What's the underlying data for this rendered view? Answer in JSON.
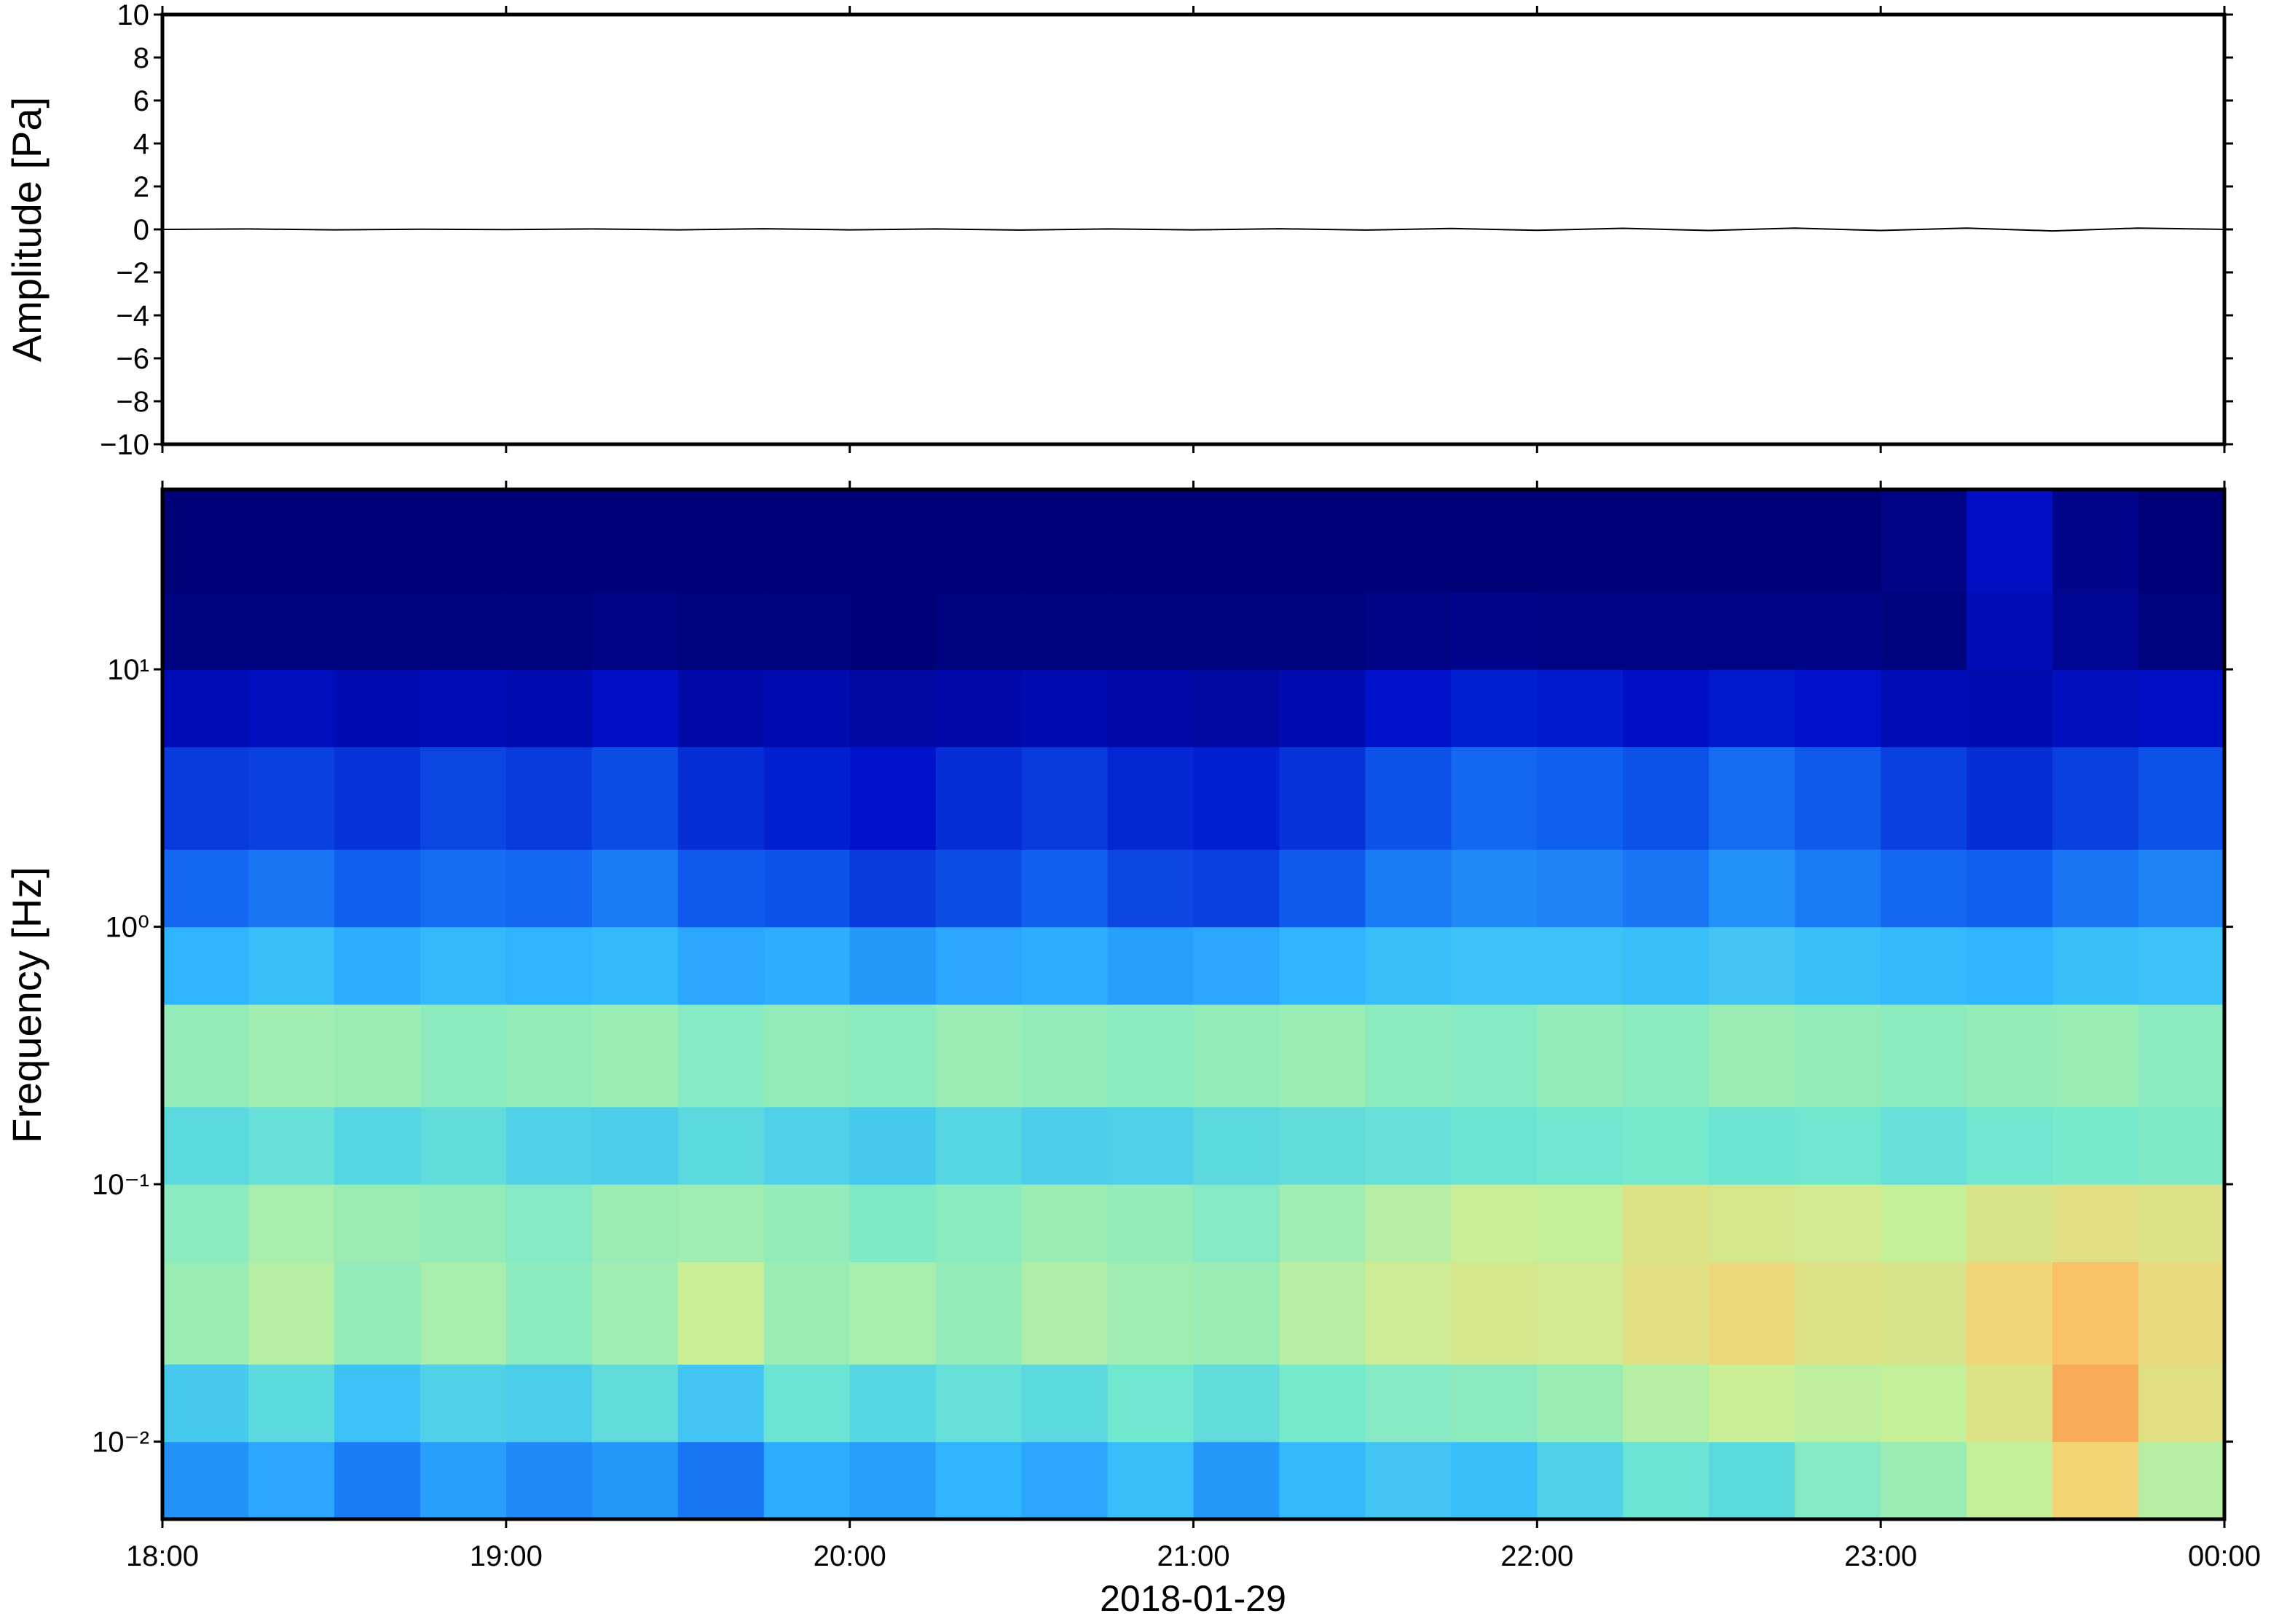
{
  "chart_data": [
    {
      "type": "line",
      "ylabel": "Amplitude [Pa]",
      "color": "#000000",
      "xlim": [
        18,
        24
      ],
      "x": [
        18,
        18.25,
        18.5,
        18.75,
        19,
        19.25,
        19.5,
        19.75,
        20,
        20.25,
        20.5,
        20.75,
        21,
        21.25,
        21.5,
        21.75,
        22,
        22.25,
        22.5,
        22.75,
        23,
        23.25,
        23.5,
        23.75,
        24
      ],
      "values": [
        0,
        0.02,
        -0.02,
        0.01,
        -0.01,
        0.02,
        -0.02,
        0.03,
        -0.02,
        0.02,
        -0.03,
        0.02,
        -0.02,
        0.03,
        -0.03,
        0.04,
        -0.04,
        0.05,
        -0.05,
        0.06,
        -0.05,
        0.06,
        -0.07,
        0.06,
        0
      ],
      "ylim": [
        -10,
        10
      ],
      "yticks": [
        {
          "value": -10,
          "label": "−10"
        },
        {
          "value": -8,
          "label": "−8"
        },
        {
          "value": -6,
          "label": "−6"
        },
        {
          "value": -4,
          "label": "−4"
        },
        {
          "value": -2,
          "label": "−2"
        },
        0,
        2,
        4,
        6,
        8,
        10
      ]
    },
    {
      "type": "heatmap",
      "ylabel": "Frequency [Hz]",
      "xlabel": "2018-01-29",
      "xlim": [
        18,
        24
      ],
      "xticks": [
        {
          "value": 18,
          "label": "18:00"
        },
        {
          "value": 19,
          "label": "19:00"
        },
        {
          "value": 20,
          "label": "20:00"
        },
        {
          "value": 21,
          "label": "21:00"
        },
        {
          "value": 22,
          "label": "22:00"
        },
        {
          "value": 23,
          "label": "23:00"
        },
        {
          "value": 24,
          "label": "00:00"
        }
      ],
      "ylim": [
        0.005,
        50
      ],
      "log_y": true,
      "yticks": [
        {
          "value": 0.01,
          "label": "10⁻²"
        },
        {
          "value": 0.1,
          "label": "10⁻¹"
        },
        {
          "value": 1,
          "label": "10⁰"
        },
        {
          "value": 10,
          "label": "10¹"
        }
      ],
      "time_bins": [
        18,
        18.25,
        18.5,
        18.75,
        19,
        19.25,
        19.5,
        19.75,
        20,
        20.25,
        20.5,
        20.75,
        21,
        21.25,
        21.5,
        21.75,
        22,
        22.25,
        22.5,
        22.75,
        23,
        23.25,
        23.5,
        23.75,
        24
      ],
      "freq_bins": [
        0.005,
        0.01,
        0.02,
        0.05,
        0.1,
        0.2,
        0.5,
        1,
        2,
        5,
        10,
        20,
        50
      ],
      "zlim": [
        0,
        10
      ],
      "colormap": [
        "#000070",
        "#0010c8",
        "#1060f0",
        "#30b8ff",
        "#70e8d0",
        "#c8f098",
        "#f8d070",
        "#f89048",
        "#e83a20"
      ],
      "z": [
        [
          3.2,
          3.5,
          2.9,
          3.4,
          3.1,
          3.3,
          2.8,
          3.6,
          3.4,
          3.7,
          3.5,
          3.9,
          3.3,
          3.8,
          4.1,
          3.9,
          4.4,
          4.9,
          4.6,
          5.3,
          5.6,
          6.2,
          7.4,
          6.0
        ],
        [
          4.2,
          4.6,
          4.0,
          4.4,
          4.3,
          4.7,
          4.1,
          4.9,
          4.5,
          4.8,
          4.6,
          5.0,
          4.7,
          5.1,
          5.3,
          5.4,
          5.6,
          6.0,
          6.3,
          6.1,
          6.2,
          6.8,
          8.2,
          6.9
        ],
        [
          5.6,
          6.0,
          5.5,
          5.8,
          5.4,
          5.7,
          6.3,
          5.6,
          5.8,
          5.5,
          5.9,
          5.7,
          5.6,
          6.0,
          6.4,
          6.6,
          6.5,
          6.9,
          7.2,
          6.8,
          6.7,
          7.3,
          7.8,
          7.1
        ],
        [
          5.4,
          5.8,
          5.6,
          5.5,
          5.3,
          5.6,
          5.7,
          5.5,
          5.2,
          5.4,
          5.6,
          5.5,
          5.3,
          5.7,
          6.0,
          6.3,
          6.2,
          6.8,
          6.6,
          6.5,
          6.2,
          6.7,
          6.9,
          6.8
        ],
        [
          4.6,
          4.8,
          4.5,
          4.7,
          4.4,
          4.3,
          4.6,
          4.4,
          4.2,
          4.5,
          4.3,
          4.4,
          4.6,
          4.7,
          4.8,
          4.9,
          5.0,
          5.1,
          4.9,
          5.0,
          4.8,
          5.0,
          5.1,
          5.2
        ],
        [
          5.5,
          5.7,
          5.6,
          5.4,
          5.5,
          5.6,
          5.3,
          5.5,
          5.4,
          5.6,
          5.5,
          5.4,
          5.5,
          5.6,
          5.4,
          5.3,
          5.5,
          5.4,
          5.6,
          5.5,
          5.4,
          5.5,
          5.6,
          5.4
        ],
        [
          3.7,
          3.9,
          3.6,
          3.8,
          3.7,
          3.8,
          3.5,
          3.6,
          3.3,
          3.5,
          3.6,
          3.4,
          3.5,
          3.7,
          3.9,
          4.0,
          4.0,
          3.9,
          4.1,
          3.9,
          3.8,
          3.7,
          3.9,
          4.0
        ],
        [
          2.6,
          2.8,
          2.5,
          2.7,
          2.6,
          2.9,
          2.4,
          2.3,
          1.9,
          2.2,
          2.5,
          2.1,
          2.0,
          2.4,
          2.9,
          3.1,
          3.0,
          2.8,
          3.2,
          2.9,
          2.6,
          2.5,
          2.8,
          3.0
        ],
        [
          1.9,
          2.0,
          1.8,
          2.1,
          1.9,
          2.2,
          1.7,
          1.5,
          1.3,
          1.7,
          1.9,
          1.6,
          1.5,
          1.8,
          2.3,
          2.6,
          2.5,
          2.3,
          2.7,
          2.4,
          2.0,
          1.7,
          2.0,
          2.3
        ],
        [
          1.0,
          1.1,
          0.9,
          1.0,
          0.9,
          1.2,
          0.8,
          0.9,
          0.7,
          0.8,
          0.9,
          0.8,
          0.7,
          0.9,
          1.3,
          1.5,
          1.4,
          1.2,
          1.4,
          1.3,
          1.0,
          0.9,
          1.1,
          1.2
        ],
        [
          0.2,
          0.2,
          0.2,
          0.2,
          0.2,
          0.3,
          0.2,
          0.2,
          0.1,
          0.2,
          0.2,
          0.2,
          0.2,
          0.2,
          0.3,
          0.4,
          0.3,
          0.3,
          0.3,
          0.3,
          0.2,
          1.0,
          0.5,
          0.2
        ],
        [
          0.1,
          0.1,
          0.1,
          0.1,
          0.1,
          0.1,
          0.1,
          0.1,
          0.1,
          0.1,
          0.1,
          0.1,
          0.1,
          0.1,
          0.1,
          0.1,
          0.1,
          0.1,
          0.1,
          0.1,
          0.3,
          1.2,
          0.4,
          0.1
        ]
      ]
    }
  ]
}
